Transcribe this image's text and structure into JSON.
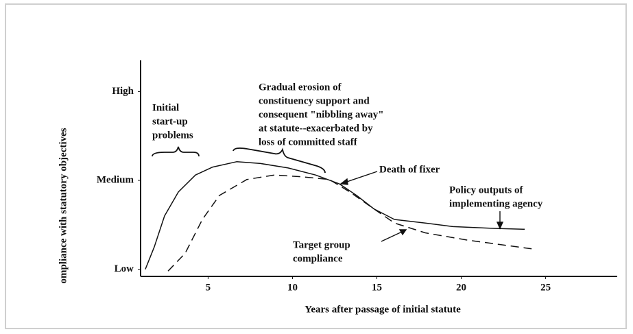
{
  "chart_data": {
    "type": "line",
    "xlabel": "Years after passage of initial statute",
    "ylabel": "ompliance with statutory objectives",
    "xlim": [
      1,
      29
    ],
    "xticks": [
      5,
      10,
      15,
      20,
      25
    ],
    "ylim": [
      -0.08,
      2.35
    ],
    "yticks": [
      {
        "value": 0,
        "label": "Low"
      },
      {
        "value": 1,
        "label": "Medium"
      },
      {
        "value": 2,
        "label": "High"
      }
    ],
    "series": [
      {
        "color": "#111111",
        "dash": "solid",
        "x": [
          1.28,
          1.81,
          2.42,
          3.24,
          4.25,
          5.27,
          6.69,
          8.11,
          9.74,
          11.37,
          12.79,
          13.8,
          14.82,
          16.04,
          17.87,
          19.5,
          21.93,
          23.76
        ],
        "values": [
          0,
          0.25,
          0.6,
          0.87,
          1.06,
          1.15,
          1.21,
          1.19,
          1.14,
          1.06,
          0.96,
          0.83,
          0.68,
          0.56,
          0.52,
          0.48,
          0.46,
          0.45
        ]
      },
      {
        "color": "#111111",
        "dash": "dashed",
        "x": [
          2.63,
          3.64,
          4.66,
          5.67,
          7.3,
          8.93,
          10.55,
          12.18,
          13.4,
          14.82,
          16.04,
          17.87,
          20.31,
          24.17
        ],
        "values": [
          -0.02,
          0.18,
          0.56,
          0.83,
          1.01,
          1.06,
          1.04,
          1.01,
          0.87,
          0.68,
          0.52,
          0.41,
          0.33,
          0.23
        ]
      }
    ],
    "annotations": [
      {
        "lines": [
          "Initial",
          "start-up",
          "problems"
        ]
      },
      {
        "lines": [
          "Gradual erosion of",
          "constituency support and",
          "consequent \"nibbling away\"",
          "at statute--exacerbated by",
          "loss of committed staff"
        ]
      },
      {
        "lines": [
          "Death of fixer"
        ]
      },
      {
        "lines": [
          "Policy outputs of",
          "implementing agency"
        ]
      },
      {
        "lines": [
          "Target group",
          "compliance"
        ]
      }
    ]
  }
}
